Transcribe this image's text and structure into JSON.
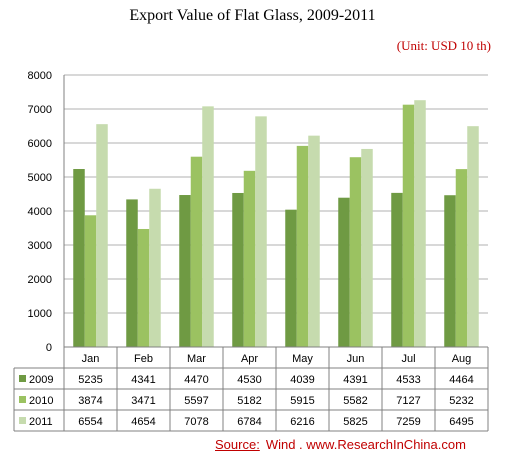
{
  "title": "Export Value of Flat Glass, 2009-2011",
  "unit_note": "(Unit: USD 10 th)",
  "source": {
    "label": "Source:",
    "text": "Wind .   www.ResearchInChina.com"
  },
  "colors": {
    "2009": "#6f9a43",
    "2010": "#9bc261",
    "2011": "#c6dbae",
    "grid": "#b0b0b0"
  },
  "chart_data": {
    "type": "bar",
    "categories": [
      "Jan",
      "Feb",
      "Mar",
      "Apr",
      "May",
      "Jun",
      "Jul",
      "Aug"
    ],
    "series": [
      {
        "name": "2009",
        "values": [
          5235,
          4341,
          4470,
          4530,
          4039,
          4391,
          4533,
          4464
        ]
      },
      {
        "name": "2010",
        "values": [
          3874,
          3471,
          5597,
          5182,
          5915,
          5582,
          7127,
          5232
        ]
      },
      {
        "name": "2011",
        "values": [
          6554,
          4654,
          7078,
          6784,
          6216,
          5825,
          7259,
          6495
        ]
      }
    ],
    "ylim": [
      0,
      8000
    ],
    "yticks": [
      0,
      1000,
      2000,
      3000,
      4000,
      5000,
      6000,
      7000,
      8000
    ],
    "grid": true,
    "legend": "data-table"
  }
}
